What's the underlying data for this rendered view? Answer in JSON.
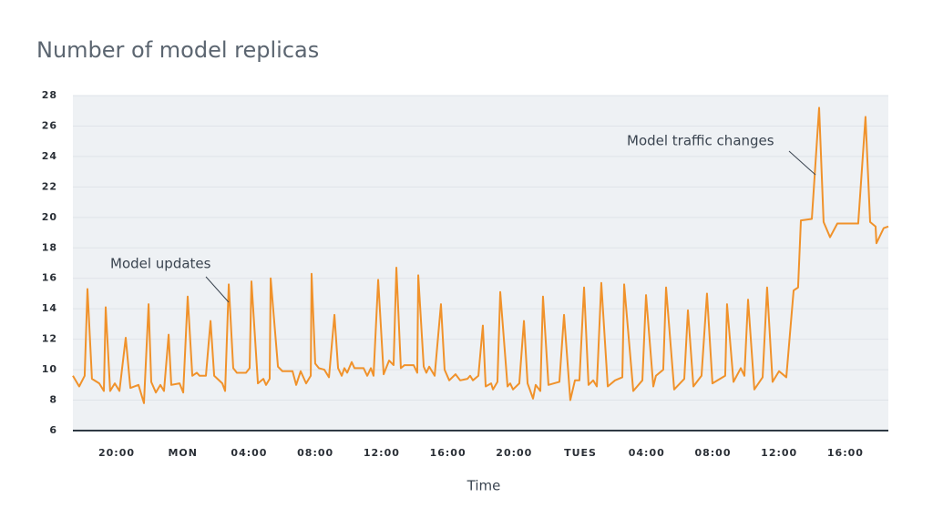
{
  "chart_data": {
    "type": "line",
    "title": "Number of model replicas",
    "x_label": "Time",
    "annotations": [
      "Model updates",
      "Model traffic changes"
    ],
    "color": "#f0922b",
    "grid": true,
    "xlim": [
      -2.64,
      46.59
    ],
    "xticks": [
      {
        "value": 0,
        "label": "20:00"
      },
      {
        "value": 4,
        "label": "MON"
      },
      {
        "value": 8,
        "label": "04:00"
      },
      {
        "value": 12,
        "label": "08:00"
      },
      {
        "value": 16,
        "label": "12:00"
      },
      {
        "value": 20,
        "label": "16:00"
      },
      {
        "value": 24,
        "label": "20:00"
      },
      {
        "value": 28,
        "label": "TUES"
      },
      {
        "value": 32,
        "label": "04:00"
      },
      {
        "value": 36,
        "label": "08:00"
      },
      {
        "value": 40,
        "label": "12:00"
      },
      {
        "value": 44,
        "label": "16:00"
      }
    ],
    "ylim": [
      6,
      28
    ],
    "yticks": [
      6,
      8,
      10,
      12,
      14,
      16,
      18,
      20,
      22,
      24,
      26,
      28
    ],
    "x": [
      -2.64,
      -2.26,
      -1.93,
      -1.76,
      -1.49,
      -1.05,
      -0.77,
      -0.66,
      -0.39,
      -0.11,
      0.17,
      0.55,
      0.83,
      1.32,
      1.65,
      1.93,
      2.09,
      2.37,
      2.64,
      2.86,
      3.14,
      3.3,
      3.8,
      4.02,
      4.29,
      4.57,
      4.84,
      5.01,
      5.39,
      5.67,
      5.89,
      6.38,
      6.55,
      6.77,
      7.04,
      7.26,
      7.81,
      8.03,
      8.14,
      8.53,
      8.86,
      9.02,
      9.24,
      9.3,
      9.74,
      10.01,
      10.62,
      10.84,
      11.11,
      11.44,
      11.72,
      11.77,
      11.99,
      12.21,
      12.54,
      12.82,
      13.15,
      13.37,
      13.59,
      13.75,
      13.92,
      14.19,
      14.36,
      14.91,
      15.13,
      15.35,
      15.51,
      15.79,
      16.12,
      16.45,
      16.72,
      16.89,
      17.16,
      17.38,
      17.93,
      18.15,
      18.21,
      18.54,
      18.7,
      18.87,
      19.2,
      19.58,
      19.8,
      20.08,
      20.46,
      20.74,
      21.18,
      21.34,
      21.51,
      21.84,
      22.11,
      22.28,
      22.61,
      22.72,
      22.99,
      23.16,
      23.6,
      23.76,
      23.93,
      24.31,
      24.59,
      24.81,
      25.14,
      25.3,
      25.58,
      25.74,
      26.07,
      26.73,
      27.01,
      27.39,
      27.67,
      27.94,
      28.22,
      28.49,
      28.77,
      28.99,
      29.26,
      29.65,
      30.09,
      30.53,
      30.64,
      31.19,
      31.74,
      31.96,
      32.4,
      32.56,
      33.0,
      33.17,
      33.66,
      34.27,
      34.49,
      34.82,
      35.31,
      35.64,
      35.97,
      36.74,
      36.85,
      37.24,
      37.68,
      37.9,
      38.12,
      38.5,
      39.0,
      39.27,
      39.6,
      39.99,
      40.43,
      40.87,
      41.14,
      41.31,
      41.97,
      42.41,
      42.68,
      43.07,
      43.51,
      44.77,
      45.21,
      45.49,
      45.82,
      45.87,
      46.31,
      46.59
    ],
    "values": [
      9.6,
      8.9,
      9.6,
      15.3,
      9.4,
      9.1,
      8.6,
      14.1,
      8.6,
      9.1,
      8.6,
      12.1,
      8.8,
      9.0,
      7.8,
      14.3,
      9.2,
      8.5,
      9.0,
      8.6,
      12.3,
      9.0,
      9.1,
      8.5,
      14.8,
      9.6,
      9.8,
      9.6,
      9.6,
      13.2,
      9.6,
      9.1,
      8.6,
      15.6,
      10.1,
      9.8,
      9.8,
      10.1,
      15.8,
      9.1,
      9.4,
      9.0,
      9.4,
      16.0,
      10.2,
      9.9,
      9.9,
      9.0,
      9.9,
      9.1,
      9.6,
      16.3,
      10.4,
      10.1,
      10.0,
      9.5,
      13.6,
      10.1,
      9.6,
      10.1,
      9.8,
      10.5,
      10.1,
      10.1,
      9.6,
      10.1,
      9.6,
      15.9,
      9.7,
      10.6,
      10.3,
      16.7,
      10.1,
      10.3,
      10.3,
      9.8,
      16.2,
      10.2,
      9.8,
      10.2,
      9.6,
      14.3,
      10.0,
      9.3,
      9.7,
      9.3,
      9.4,
      9.6,
      9.3,
      9.6,
      12.9,
      8.9,
      9.1,
      8.7,
      9.2,
      15.1,
      8.9,
      9.1,
      8.7,
      9.1,
      13.2,
      9.1,
      8.1,
      9.0,
      8.6,
      14.8,
      9.0,
      9.2,
      13.6,
      8.0,
      9.3,
      9.3,
      15.4,
      9.0,
      9.3,
      8.9,
      15.7,
      8.9,
      9.3,
      9.5,
      15.6,
      8.6,
      9.3,
      14.9,
      8.9,
      9.6,
      10.0,
      15.4,
      8.7,
      9.4,
      13.9,
      8.9,
      9.6,
      15.0,
      9.1,
      9.6,
      14.3,
      9.2,
      10.1,
      9.6,
      14.6,
      8.7,
      9.5,
      15.4,
      9.2,
      9.9,
      9.5,
      15.2,
      15.4,
      19.8,
      19.9,
      27.2,
      19.7,
      18.7,
      19.6,
      19.6,
      26.6,
      19.7,
      19.4,
      18.3,
      19.3,
      19.4
    ]
  }
}
